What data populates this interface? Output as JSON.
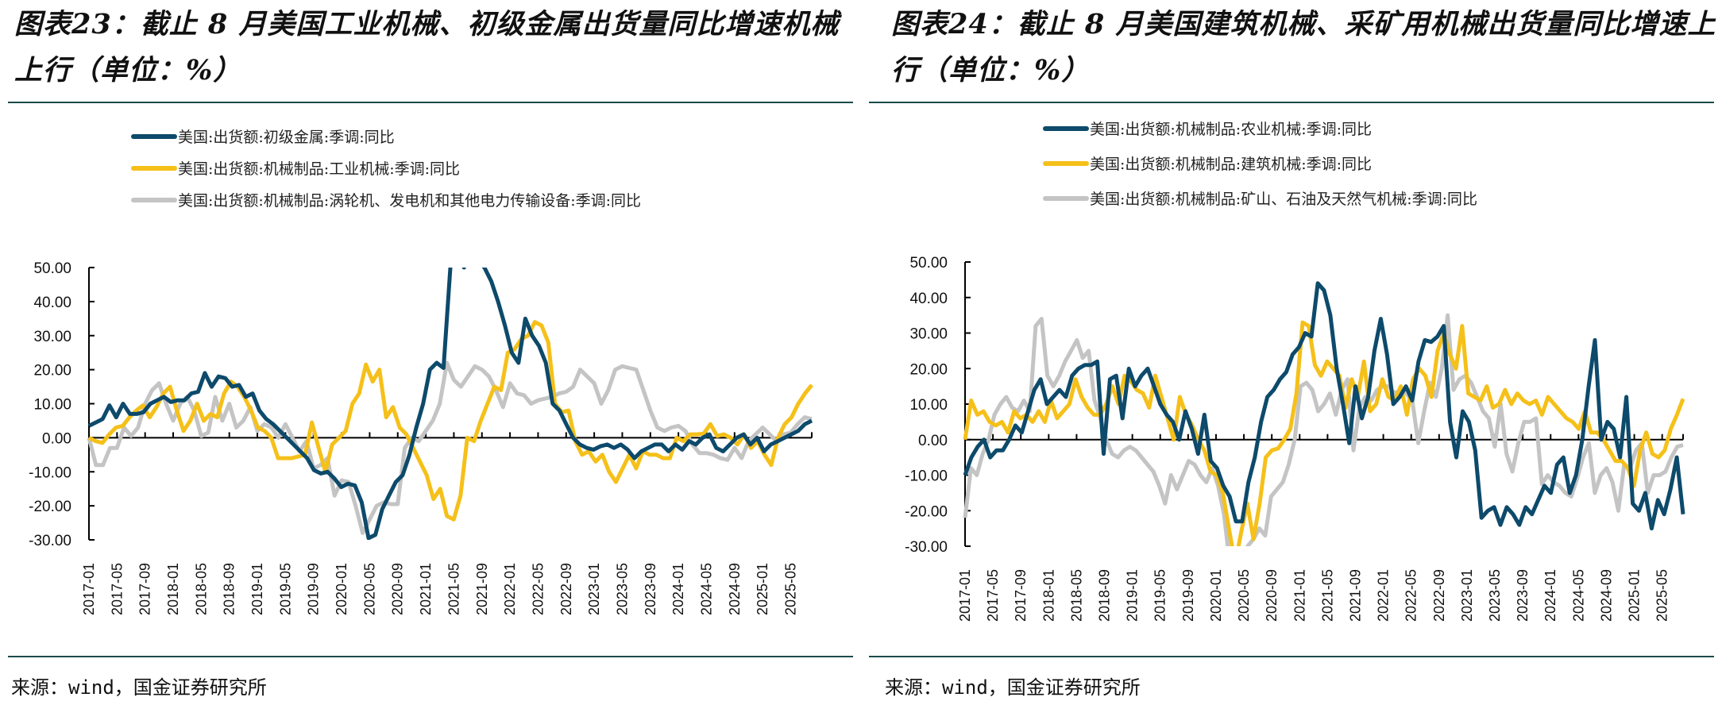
{
  "panels": [
    {
      "title": "图表23：截止 8 月美国工业机械、初级金属出货量同比增速机械上行（单位：%）",
      "source": "来源：wind，国金证券研究所"
    },
    {
      "title": "图表24：截止 8 月美国建筑机械、采矿用机械出货量同比增速上行（单位：%）",
      "source": "来源：wind，国金证券研究所"
    }
  ],
  "chart_data": [
    {
      "type": "line",
      "title": "截止 8 月美国工业机械、初级金属出货量同比增速机械上行（单位：%）",
      "xlabel": "",
      "ylabel": "%",
      "ylim": [
        -30,
        50
      ],
      "yticks": [
        "50.00",
        "40.00",
        "30.00",
        "20.00",
        "10.00",
        "0.00",
        "-10.00",
        "-20.00",
        "-30.00"
      ],
      "ytick_values": [
        50,
        40,
        30,
        20,
        10,
        0,
        -10,
        -20,
        -30
      ],
      "x_start": "2017-01",
      "x_end": "2025-08",
      "xticks": [
        "2017-01",
        "2017-05",
        "2017-09",
        "2018-01",
        "2018-05",
        "2018-09",
        "2019-01",
        "2019-05",
        "2019-09",
        "2020-01",
        "2020-05",
        "2020-09",
        "2021-01",
        "2021-05",
        "2021-09",
        "2022-01",
        "2022-05",
        "2022-09",
        "2023-01",
        "2023-05",
        "2023-09",
        "2024-01",
        "2024-05",
        "2024-09",
        "2025-01",
        "2025-05"
      ],
      "legend_position": "top-left",
      "grid": false,
      "series": [
        {
          "name": "美国:出货额:初级金属:季调:同比",
          "color": "#0d4a6b",
          "values": [
            3.5,
            4.5,
            5.5,
            9.5,
            6,
            10,
            7,
            7,
            7.5,
            10,
            11,
            12,
            10.5,
            11,
            11,
            13,
            13.5,
            19,
            15,
            18,
            17.5,
            15,
            15.5,
            12,
            13,
            8,
            5.5,
            4,
            2,
            0,
            -2,
            -4,
            -6,
            -9.5,
            -10.5,
            -10,
            -12,
            -14.5,
            -13.5,
            -14,
            -19,
            -29.5,
            -28.5,
            -21,
            -17,
            -13,
            -11,
            -5,
            3,
            10,
            20,
            22,
            20.5,
            50,
            55,
            50,
            55,
            52,
            50,
            46,
            40,
            33,
            25,
            22,
            35,
            30,
            27,
            22,
            10,
            8,
            4,
            0,
            -2,
            -3,
            -3.5,
            -2.5,
            -2,
            -3,
            -2,
            -3.5,
            -6,
            -4,
            -3,
            -2,
            -2,
            -4,
            -2,
            -3.5,
            -1,
            -2,
            0,
            1,
            -3,
            -4,
            -2,
            0,
            1,
            -2,
            0,
            -4,
            -2,
            -1,
            0,
            1,
            2,
            4,
            5
          ],
          "clipped_above": 50
        },
        {
          "name": "美国:出货额:机械制品:工业机械:季调:同比",
          "color": "#f5c019",
          "values": [
            0,
            -1,
            -1.5,
            1,
            3,
            3.5,
            6,
            8,
            9.5,
            6,
            9,
            13,
            15,
            8,
            2,
            5,
            10,
            5,
            7,
            6,
            13,
            16.5,
            15,
            12,
            8,
            3,
            2,
            0,
            -6,
            -6,
            -6,
            -5.5,
            -5,
            4.5,
            -3,
            -10,
            -2,
            0,
            2,
            10,
            13,
            21.5,
            16.5,
            20,
            6,
            9,
            3,
            1,
            -3,
            -7,
            -11,
            -18,
            -15,
            -23,
            -24,
            -17,
            0,
            -1,
            5,
            10,
            15,
            14,
            25,
            26,
            29,
            30,
            34,
            33,
            28,
            10,
            7.5,
            8,
            -1,
            -5,
            -4,
            -7,
            -5,
            -10,
            -13,
            -9,
            -5,
            -9,
            -4,
            -5,
            -5,
            -6,
            -6,
            0,
            -1,
            1,
            1,
            1.2,
            4,
            0.5,
            1,
            0,
            -2,
            1,
            -3,
            -1,
            -5,
            -8,
            0,
            4,
            6,
            10,
            13,
            15.5
          ],
          "clipped_below": -30
        },
        {
          "name": "美国:出货额:机械制品:涡轮机、发电机和其他电力传输设备:季调:同比",
          "color": "#c4c4c4",
          "values": [
            0,
            -8,
            -8,
            -3,
            -3,
            3,
            0.5,
            3,
            10,
            14,
            16,
            10,
            5,
            10,
            12,
            8,
            0.5,
            1.5,
            12,
            5,
            10,
            3,
            5,
            9,
            2,
            4,
            3,
            0,
            4,
            0,
            -4,
            -1,
            -9,
            -8,
            -6,
            -17,
            -12.5,
            -13,
            -20,
            -28,
            -24,
            -20,
            -19,
            -19.5,
            -19.5,
            -3,
            0,
            -1,
            2,
            5,
            10,
            22,
            17,
            15,
            18,
            21,
            20,
            18,
            14,
            9,
            16,
            13,
            12.5,
            10,
            11,
            11.5,
            12,
            13,
            13.5,
            15,
            20,
            18,
            16,
            10,
            14,
            20,
            21,
            20.5,
            20,
            14,
            8,
            3,
            2,
            3,
            3.5,
            2,
            -2,
            -4.5,
            -4.5,
            -5,
            -6,
            -6.5,
            -3,
            -6,
            -1,
            1,
            3,
            1,
            -1,
            1,
            1.5,
            4,
            6,
            5.5
          ],
          "clipped_below": -30
        }
      ]
    },
    {
      "type": "line",
      "title": "截止 8 月美国建筑机械、采矿用机械出货量同比增速上行（单位：%）",
      "xlabel": "",
      "ylabel": "%",
      "ylim": [
        -30,
        50
      ],
      "yticks": [
        "50.00",
        "40.00",
        "30.00",
        "20.00",
        "10.00",
        "0.00",
        "-10.00",
        "-20.00",
        "-30.00"
      ],
      "ytick_values": [
        50,
        40,
        30,
        20,
        10,
        0,
        -10,
        -20,
        -30
      ],
      "x_start": "2017-01",
      "x_end": "2025-08",
      "xticks": [
        "2017-01",
        "2017-05",
        "2017-09",
        "2018-01",
        "2018-05",
        "2018-09",
        "2019-01",
        "2019-05",
        "2019-09",
        "2020-01",
        "2020-05",
        "2020-09",
        "2021-01",
        "2021-05",
        "2021-09",
        "2022-01",
        "2022-05",
        "2022-09",
        "2023-01",
        "2023-05",
        "2023-09",
        "2024-01",
        "2024-05",
        "2024-09",
        "2025-01",
        "2025-05"
      ],
      "legend_position": "top-left",
      "grid": false,
      "series": [
        {
          "name": "美国:出货额:机械制品:农业机械:季调:同比",
          "color": "#0d4a6b",
          "values": [
            -10,
            -5,
            -2,
            0,
            -5,
            -3,
            -3,
            0,
            4,
            2,
            8,
            14,
            17,
            10,
            12,
            14,
            12,
            18,
            20,
            21,
            21,
            22,
            -4,
            17,
            18,
            6,
            20,
            15,
            18,
            20,
            15,
            10,
            7,
            5,
            0,
            8,
            3,
            -4,
            7,
            -6,
            -8,
            -13,
            -16,
            -23,
            -23,
            -12,
            -5,
            5,
            12,
            14,
            17,
            19,
            24,
            26,
            30,
            29,
            44,
            42,
            35,
            20,
            10,
            -1,
            15,
            6,
            12,
            25,
            34,
            24,
            10,
            12,
            15,
            11,
            22,
            28,
            27.5,
            29,
            32,
            5,
            -5,
            8,
            5,
            -3,
            -22,
            -20,
            -19,
            -24,
            -19,
            -21,
            -24,
            -19,
            -21,
            -17,
            -13,
            -15,
            -7,
            -5,
            -15,
            -10,
            0,
            15,
            28,
            0,
            5,
            3,
            -5,
            12,
            -18,
            -20,
            -15,
            -25,
            -17,
            -21,
            -14,
            -5,
            -21
          ],
          "clipped_below": -30
        },
        {
          "name": "美国:出货额:机械制品:建筑机械:季调:同比",
          "color": "#f5c019",
          "values": [
            0,
            11,
            7,
            8,
            5,
            4,
            5,
            2,
            8,
            6,
            7,
            5,
            8,
            5,
            11,
            6,
            8,
            10,
            17,
            12,
            9,
            7,
            7,
            10,
            15,
            10,
            18,
            16.5,
            14,
            13,
            9,
            18,
            12,
            6,
            0,
            12,
            7,
            4,
            0,
            -3,
            -9,
            -10,
            -15,
            -25,
            -35,
            -26,
            -18,
            -28,
            -18,
            -5,
            -3,
            -2.5,
            0,
            3,
            13,
            33,
            32,
            21,
            18,
            22,
            20,
            18,
            9,
            17,
            12,
            22,
            8,
            10,
            17,
            12,
            11,
            15,
            7,
            17,
            20,
            18,
            12,
            25,
            30,
            24,
            20,
            32,
            13,
            12,
            11,
            15,
            9,
            10,
            14,
            10,
            13,
            11,
            10,
            11,
            7,
            12,
            10,
            8,
            6,
            5,
            3,
            8,
            2,
            2,
            0,
            -3,
            -6,
            -6,
            -8,
            -13,
            -3,
            2,
            -4,
            -5,
            -3,
            3,
            7,
            11.5
          ],
          "clipped_below": -30
        },
        {
          "name": "美国:出货额:机械制品:矿山、石油及天然气机械:季调:同比",
          "color": "#c4c4c4",
          "values": [
            -22,
            -8,
            -10,
            -4,
            0,
            7,
            10,
            12,
            9,
            8,
            11,
            8,
            32,
            34,
            18,
            15,
            18,
            22,
            25,
            28,
            23,
            25,
            11,
            6,
            0,
            -4,
            -5,
            -3,
            -2,
            -3,
            -5,
            -7,
            -9,
            -13,
            -18,
            -10,
            -14,
            -10,
            -6,
            -7,
            -10,
            -12,
            -8,
            -13,
            -21,
            -35,
            -32,
            -35,
            -30,
            -28,
            -25,
            -27,
            -16,
            -14,
            -12,
            -7,
            0,
            15,
            16,
            14,
            8,
            10,
            13,
            7,
            14,
            17,
            -3,
            9,
            12,
            11,
            14,
            15,
            15,
            13,
            14,
            13,
            11,
            -1,
            8,
            16,
            12,
            20,
            35,
            14,
            17,
            18,
            16,
            12,
            8,
            6,
            -2,
            10,
            -4,
            -9,
            -1,
            5,
            5,
            6,
            -12.5,
            -10,
            -12,
            -13,
            -15,
            -16,
            -11,
            -5,
            -1,
            -15,
            -10,
            -8,
            -12,
            -20,
            -7,
            -8,
            -3,
            -1,
            -15,
            -10,
            -10,
            -9,
            -5,
            -2,
            -1.5
          ],
          "clipped_below": -30
        }
      ]
    }
  ]
}
